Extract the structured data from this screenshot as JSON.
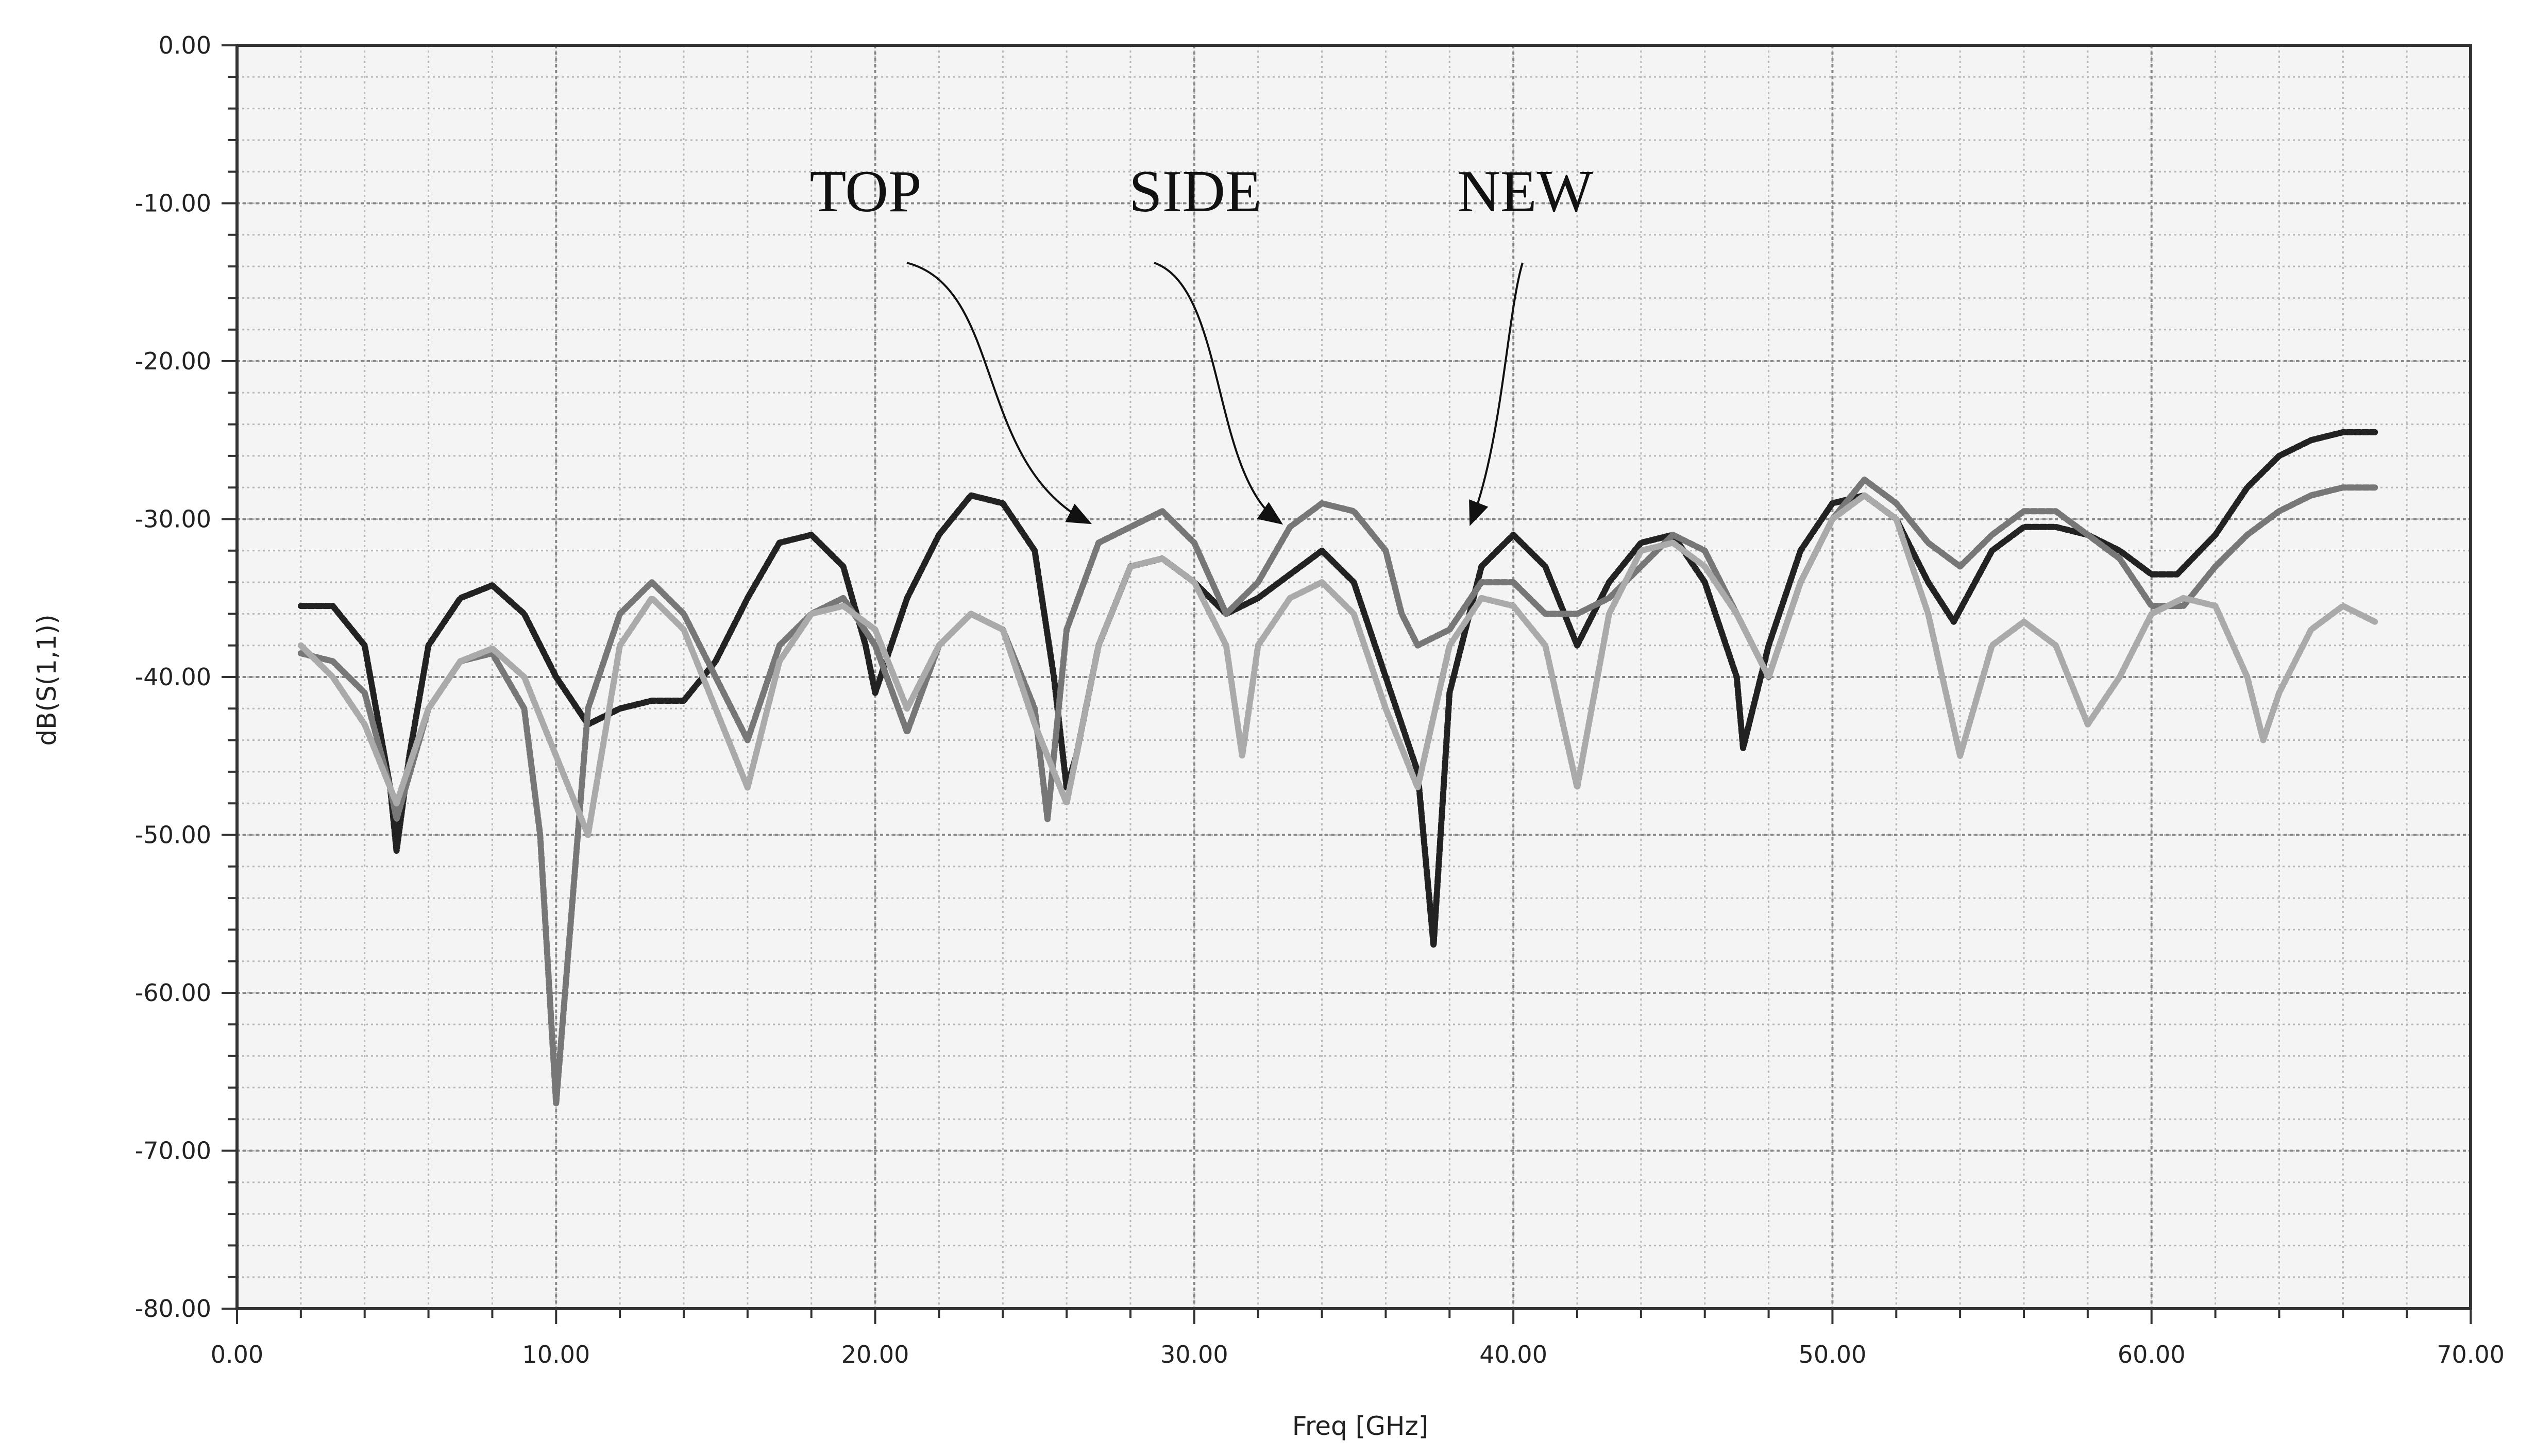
{
  "chart_data": {
    "type": "line",
    "title": "",
    "xlabel": "Freq [GHz]",
    "ylabel": "dB(S(1,1))",
    "xlim": [
      0,
      70
    ],
    "ylim": [
      -80,
      0
    ],
    "x_ticks": [
      "0.00",
      "10.00",
      "20.00",
      "30.00",
      "40.00",
      "50.00",
      "60.00",
      "70.00"
    ],
    "y_ticks": [
      "0.00",
      "-10.00",
      "-20.00",
      "-30.00",
      "-40.00",
      "-50.00",
      "-60.00",
      "-70.00",
      "-80.00"
    ],
    "grid": true,
    "series": [
      {
        "name": "NEW",
        "color": "#222222",
        "x": [
          2,
          3,
          4,
          4.8,
          5,
          5.4,
          6,
          7,
          8,
          9,
          10,
          10.5,
          11,
          12,
          13,
          14,
          15,
          16,
          17,
          18,
          19,
          19.7,
          20,
          21,
          22,
          23,
          24,
          25,
          25.6,
          26,
          26.3,
          27,
          28,
          29,
          30,
          31,
          32,
          33,
          34,
          35,
          36,
          37,
          37.5,
          38,
          39,
          40,
          41,
          42,
          43,
          44,
          45,
          46,
          47,
          47.2,
          48,
          49,
          50,
          51,
          52,
          53,
          53.8,
          55,
          56,
          57,
          58,
          59,
          60,
          60.8,
          62,
          63,
          64,
          65,
          66,
          67
        ],
        "y": [
          -35.5,
          -35.5,
          -38,
          -47,
          -51,
          -45,
          -38,
          -35,
          -34.2,
          -36,
          -40,
          -41.5,
          -43,
          -42,
          -41.5,
          -41.5,
          -39,
          -35,
          -31.5,
          -31,
          -33,
          -38,
          -41,
          -35,
          -31,
          -28.5,
          -29,
          -32,
          -40,
          -47,
          -45,
          -38,
          -33,
          -32.5,
          -34,
          -36,
          -35,
          -33.5,
          -32,
          -34,
          -40,
          -46,
          -57,
          -41,
          -33,
          -31,
          -33,
          -38,
          -34,
          -31.5,
          -31,
          -34,
          -40,
          -44.5,
          -38,
          -32,
          -29,
          -28.5,
          -30,
          -34,
          -36.5,
          -32,
          -30.5,
          -30.5,
          -31,
          -32,
          -33.5,
          -33.5,
          -31,
          -28,
          -26,
          -25,
          -24.5,
          -24.5
        ]
      },
      {
        "name": "SIDE",
        "color": "#777777",
        "x": [
          2,
          3,
          4,
          4.8,
          5,
          6,
          7,
          8,
          9,
          9.5,
          10,
          11,
          12,
          13,
          14,
          15,
          16,
          17,
          18,
          19,
          20,
          21,
          22,
          23,
          24,
          25,
          25.4,
          26,
          27,
          28,
          29,
          30,
          31,
          32,
          33,
          34,
          35,
          36,
          36.5,
          37,
          38,
          39,
          40,
          41,
          42,
          43,
          44,
          45,
          46,
          47,
          48,
          49,
          50,
          51,
          52,
          53,
          54,
          55,
          56,
          57,
          58,
          59,
          60,
          61,
          62,
          63,
          64,
          65,
          66,
          67
        ],
        "y": [
          -38.5,
          -39,
          -41,
          -47,
          -49,
          -42,
          -39,
          -38.5,
          -42,
          -50,
          -67,
          -42,
          -36,
          -34,
          -36,
          -40,
          -44,
          -38,
          -36,
          -35,
          -38,
          -43.5,
          -38,
          -36,
          -37,
          -42,
          -49,
          -37,
          -31.5,
          -30.5,
          -29.5,
          -31.5,
          -36,
          -34,
          -30.5,
          -29,
          -29.5,
          -32,
          -36,
          -38,
          -37,
          -34,
          -34,
          -36,
          -36,
          -35,
          -33,
          -31,
          -32,
          -36,
          -40,
          -34,
          -30,
          -27.5,
          -29,
          -31.5,
          -33,
          -31,
          -29.5,
          -29.5,
          -31,
          -32.5,
          -35.5,
          -35.5,
          -33,
          -31,
          -29.5,
          -28.5,
          -28,
          -28
        ]
      },
      {
        "name": "TOP",
        "color": "#aaaaaa",
        "x": [
          2,
          3,
          4,
          5,
          6,
          7,
          8,
          9,
          10,
          11,
          12,
          13,
          14,
          15,
          16,
          17,
          18,
          19,
          20,
          21,
          22,
          23,
          24,
          25,
          26,
          27,
          28,
          29,
          30,
          31,
          31.5,
          32,
          33,
          34,
          35,
          36,
          37,
          38,
          39,
          40,
          41,
          42,
          43,
          44,
          45,
          46,
          47,
          48,
          49,
          50,
          51,
          52,
          53,
          54,
          55,
          56,
          57,
          58,
          59,
          60,
          61,
          62,
          63,
          63.5,
          64,
          65,
          66,
          67
        ],
        "y": [
          -38,
          -40,
          -43,
          -48,
          -42,
          -39,
          -38.2,
          -40,
          -45,
          -50,
          -38,
          -35,
          -37,
          -42,
          -47,
          -39,
          -36,
          -35.5,
          -37,
          -42,
          -38,
          -36,
          -37,
          -43,
          -48,
          -38,
          -33,
          -32.5,
          -34,
          -38,
          -45,
          -38,
          -35,
          -34,
          -36,
          -42,
          -47,
          -38,
          -35,
          -35.5,
          -38,
          -47,
          -36,
          -32,
          -31.5,
          -33,
          -36,
          -40,
          -34,
          -30,
          -28.5,
          -30,
          -36,
          -45,
          -38,
          -36.5,
          -38,
          -43,
          -40,
          -36,
          -35,
          -35.5,
          -40,
          -44,
          -41,
          -37,
          -35.5,
          -36.5
        ]
      }
    ],
    "annotations": [
      {
        "text": "TOP",
        "target_x": 27,
        "target_y": -30.2
      },
      {
        "text": "SIDE",
        "target_x": 33,
        "target_y": -30.2
      },
      {
        "text": "NEW",
        "target_x": 39,
        "target_y": -30.2
      }
    ]
  }
}
